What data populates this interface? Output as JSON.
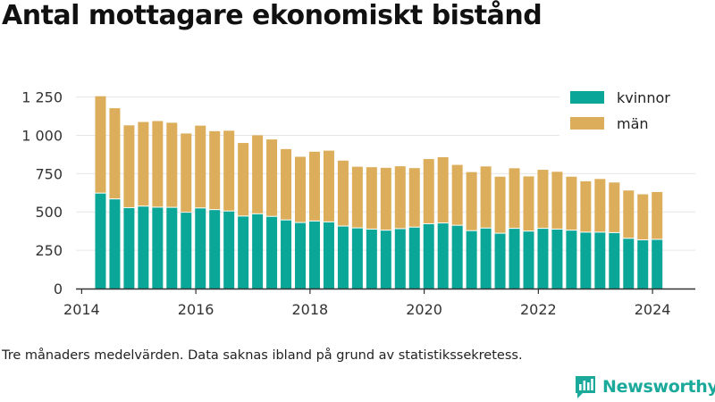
{
  "page": {
    "title": "Antal mottagare ekonomiskt bistånd",
    "footnote": "Tre månaders medelvärden. Data saknas ibland på grund av statistikssekretess.",
    "brand": "Newsworthy"
  },
  "colors": {
    "kvinnor": "#0aa698",
    "man": "#dcae5b",
    "axis": "#333333",
    "grid": "#e6e6e6",
    "brand": "#1aa99a"
  },
  "chart_data": {
    "type": "bar",
    "stacked": true,
    "x_label": "",
    "y_label": "",
    "ylim": [
      0,
      1300
    ],
    "y_ticks": [
      0,
      250,
      500,
      750,
      1000,
      1250
    ],
    "y_tick_labels": [
      "0",
      "250",
      "500",
      "750",
      "1 000",
      "1 250"
    ],
    "x_ticks": [
      2014,
      2016,
      2018,
      2020,
      2022,
      2024
    ],
    "x_tick_labels": [
      "2014",
      "2016",
      "2018",
      "2020",
      "2022",
      "2024"
    ],
    "xlim": [
      2013.9,
      2024.75
    ],
    "grid": "horizontal",
    "legend_position": "top-right",
    "x": [
      2014.33,
      2014.58,
      2014.83,
      2015.08,
      2015.33,
      2015.58,
      2015.83,
      2016.08,
      2016.33,
      2016.58,
      2016.83,
      2017.08,
      2017.33,
      2017.58,
      2017.83,
      2018.08,
      2018.33,
      2018.58,
      2018.83,
      2019.08,
      2019.33,
      2019.58,
      2019.83,
      2020.08,
      2020.33,
      2020.58,
      2020.83,
      2021.08,
      2021.33,
      2021.58,
      2021.83,
      2022.08,
      2022.33,
      2022.58,
      2022.83,
      2023.08,
      2023.33,
      2023.58,
      2023.83,
      2024.08
    ],
    "series": [
      {
        "name": "kvinnor",
        "values": [
          620,
          582,
          525,
          535,
          528,
          527,
          495,
          523,
          512,
          503,
          470,
          485,
          468,
          445,
          428,
          438,
          432,
          405,
          393,
          385,
          378,
          388,
          398,
          420,
          425,
          410,
          375,
          392,
          358,
          390,
          372,
          390,
          385,
          378,
          365,
          365,
          362,
          325,
          315,
          318
        ]
      },
      {
        "name": "män",
        "values": [
          635,
          595,
          540,
          552,
          565,
          555,
          517,
          540,
          515,
          527,
          480,
          515,
          505,
          465,
          432,
          455,
          468,
          430,
          402,
          407,
          410,
          410,
          388,
          425,
          432,
          397,
          385,
          405,
          372,
          395,
          360,
          385,
          377,
          352,
          335,
          350,
          330,
          315,
          300,
          312
        ]
      }
    ]
  }
}
